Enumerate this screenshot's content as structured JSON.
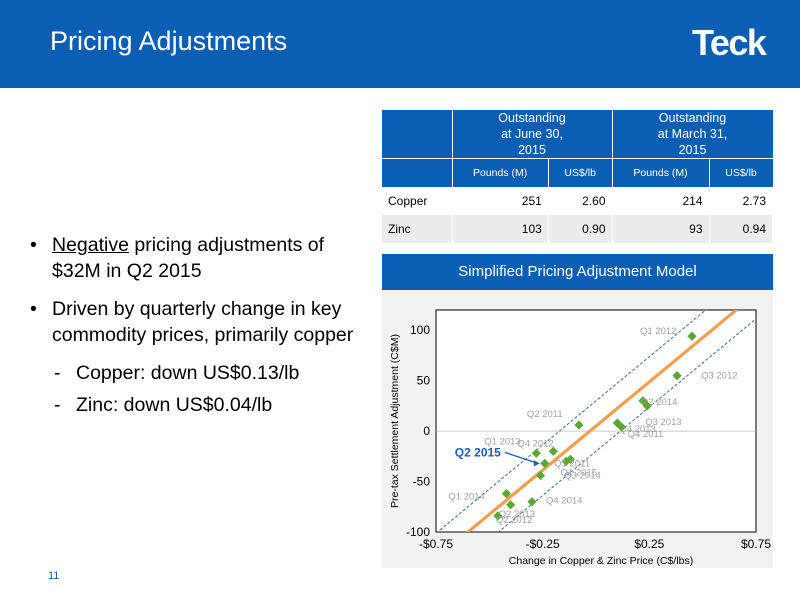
{
  "header": {
    "title": "Pricing Adjustments",
    "logo": "Teck"
  },
  "table": {
    "group_headers": [
      "Outstanding at June 30, 2015",
      "Outstanding at March 31, 2015"
    ],
    "sub_headers": [
      "Pounds (M)",
      "US$/lb",
      "Pounds (M)",
      "US$/lb"
    ],
    "rows": [
      {
        "label": "Copper",
        "values": [
          "251",
          "2.60",
          "214",
          "2.73"
        ]
      },
      {
        "label": "Zinc",
        "values": [
          "103",
          "0.90",
          "93",
          "0.94"
        ]
      }
    ]
  },
  "bullets": {
    "b1_underlined": "Negative",
    "b1_rest": " pricing adjustments of $32M in Q2 2015",
    "b2": "Driven by quarterly change in key commodity prices, primarily copper",
    "sub1": "Copper: down US$0.13/lb",
    "sub2": "Zinc: down US$0.04/lb"
  },
  "page_number": "11",
  "colors": {
    "brand_blue": "#0a5fb4",
    "point_green": "#5aa832",
    "fit_orange": "#f0a050",
    "band_blue": "#2f6cc0"
  },
  "chart_data": {
    "type": "scatter",
    "title": "Simplified Pricing Adjustment Model",
    "xlabel": "Change in Copper & Zinc Price (C$/lbs)",
    "ylabel": "Pre-tax Settlement Adjustment (C$M)",
    "xlim": [
      -0.75,
      0.75
    ],
    "ylim": [
      -100,
      120
    ],
    "x_ticks": [
      "-$0.75",
      "-$0.25",
      "$0.25",
      "$0.75"
    ],
    "y_ticks": [
      "100",
      "50",
      "0",
      "-50",
      "-100"
    ],
    "points": [
      {
        "label": "Q1 2012",
        "x": 0.45,
        "y": 94
      },
      {
        "label": "Q3 2012",
        "x": 0.38,
        "y": 55
      },
      {
        "label": "Q2 2014",
        "x": 0.22,
        "y": 30
      },
      {
        "label": "Q3 2013",
        "x": 0.24,
        "y": 25
      },
      {
        "label": "Q4 2013",
        "x": 0.1,
        "y": 8
      },
      {
        "label": "Q4 2011",
        "x": 0.12,
        "y": 4
      },
      {
        "label": "Q2 2011",
        "x": -0.08,
        "y": 6
      },
      {
        "label": "Q4 2012",
        "x": -0.2,
        "y": -20
      },
      {
        "label": "Q1 2013",
        "x": -0.28,
        "y": -22
      },
      {
        "label": "Q2 2015",
        "x": -0.24,
        "y": -32
      },
      {
        "label": "Q3 2014",
        "x": -0.12,
        "y": -28
      },
      {
        "label": "Q1 2011",
        "x": -0.14,
        "y": -30
      },
      {
        "label": "Q1 2015",
        "x": -0.26,
        "y": -44
      },
      {
        "label": "Q1 2014",
        "x": -0.42,
        "y": -62
      },
      {
        "label": "Q4 2014",
        "x": -0.3,
        "y": -70
      },
      {
        "label": "Q2 2013",
        "x": -0.4,
        "y": -73
      },
      {
        "label": "Q2 2012",
        "x": -0.46,
        "y": -84
      }
    ],
    "highlight": "Q2 2015",
    "fit_line": {
      "slope": 175,
      "intercept": 5
    },
    "band_offset": 25
  }
}
